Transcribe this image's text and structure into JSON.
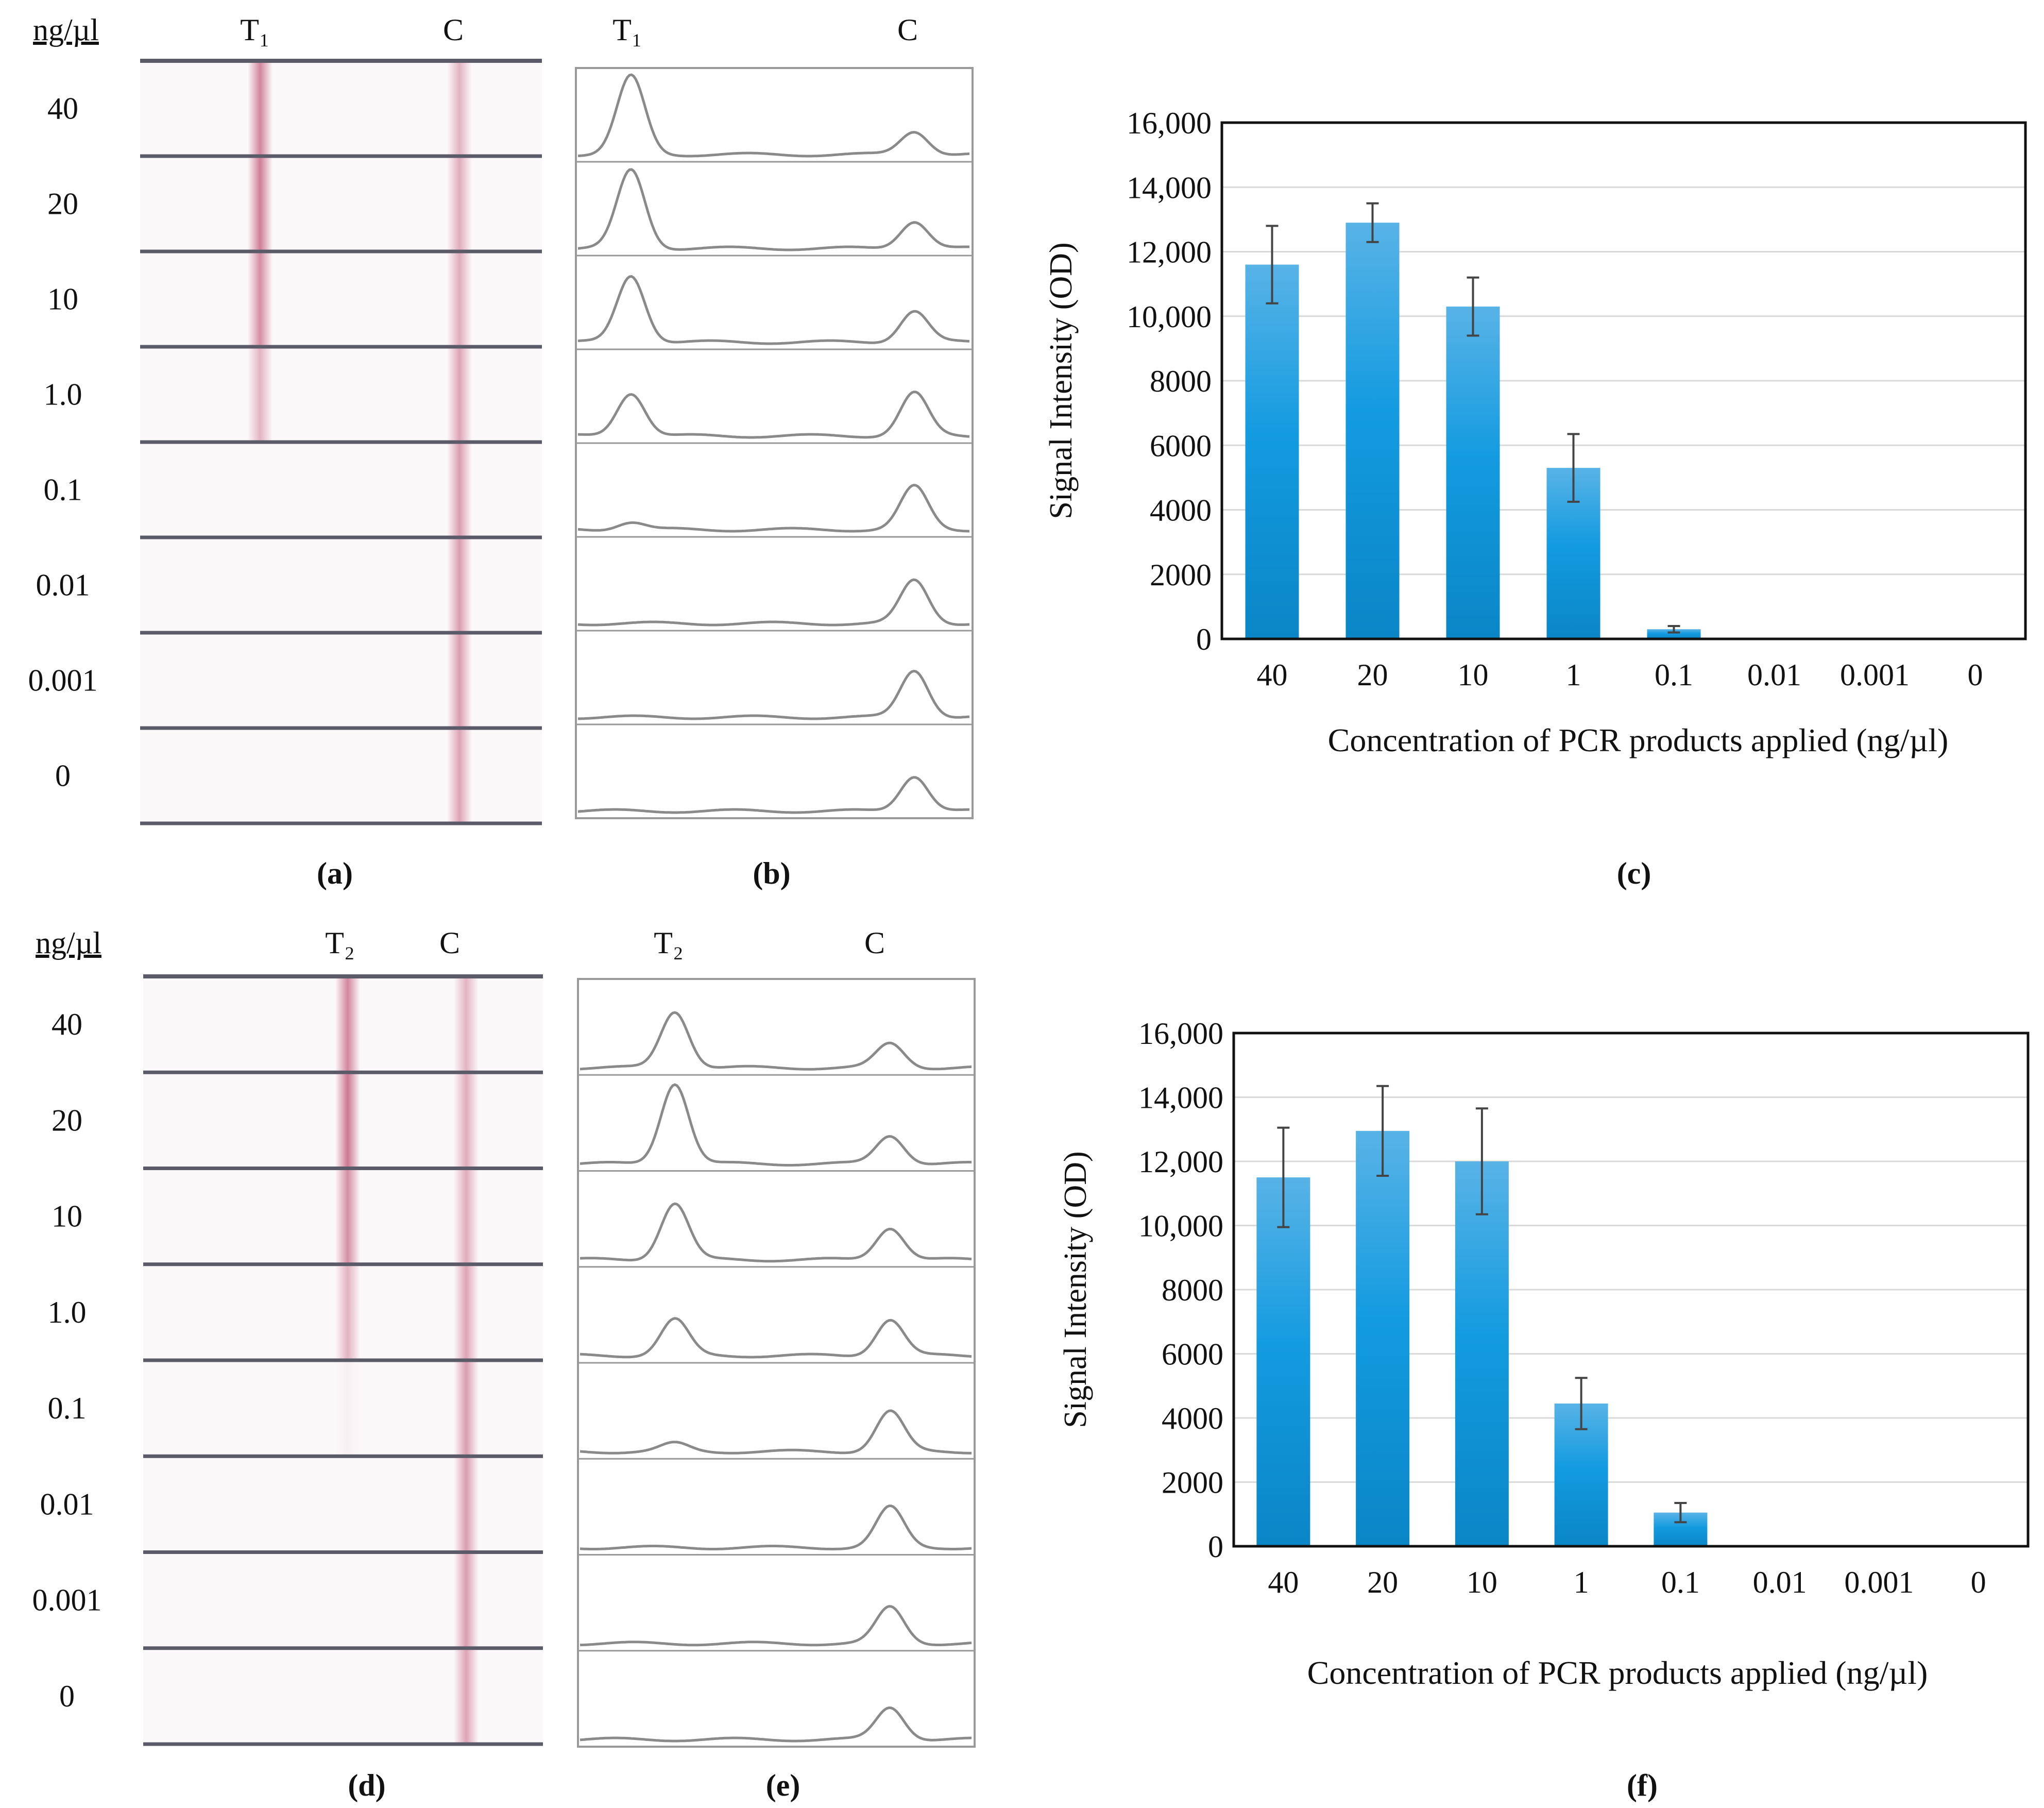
{
  "figure": {
    "top": {
      "strip": {
        "unit_header": "ng/µl",
        "test_header": "T₁",
        "control_header": "C",
        "rows": [
          "40",
          "20",
          "10",
          "1.0",
          "0.1",
          "0.01",
          "0.001",
          "0"
        ],
        "test_intensity": [
          0.75,
          0.8,
          0.7,
          0.45,
          0.0,
          0.0,
          0.0,
          0.0
        ],
        "control_intensity": [
          0.45,
          0.5,
          0.5,
          0.55,
          0.6,
          0.6,
          0.6,
          0.55
        ],
        "caption": "(a)"
      },
      "scan": {
        "test_header": "T₁",
        "control_header": "C",
        "test_peak": [
          1.0,
          1.0,
          0.85,
          0.55,
          0.1,
          0.0,
          0.0,
          0.0
        ],
        "control_peak": [
          0.3,
          0.35,
          0.4,
          0.55,
          0.55,
          0.55,
          0.6,
          0.45
        ],
        "caption": "(b)"
      },
      "chart_caption": "(c)"
    },
    "bottom": {
      "strip": {
        "unit_header": "ng/µl",
        "test_header": "T₂",
        "control_header": "C",
        "rows": [
          "40",
          "20",
          "10",
          "1.0",
          "0.1",
          "0.01",
          "0.001",
          "0"
        ],
        "test_intensity": [
          0.75,
          0.85,
          0.7,
          0.45,
          0.05,
          0.0,
          0.0,
          0.0
        ],
        "control_intensity": [
          0.45,
          0.5,
          0.5,
          0.55,
          0.6,
          0.6,
          0.6,
          0.55
        ],
        "caption": "(d)"
      },
      "scan": {
        "test_header": "T₂",
        "control_header": "C",
        "test_peak": [
          0.7,
          1.0,
          0.7,
          0.45,
          0.1,
          0.0,
          0.0,
          0.0
        ],
        "control_peak": [
          0.3,
          0.35,
          0.4,
          0.45,
          0.5,
          0.5,
          0.45,
          0.4
        ],
        "caption": "(e)"
      },
      "chart_caption": "(f)"
    }
  },
  "chart_data": [
    {
      "type": "bar",
      "title": "",
      "xlabel": "Concentration of PCR products applied (ng/µl)",
      "ylabel": "Signal Intensity (OD)",
      "categories": [
        "40",
        "20",
        "10",
        "1",
        "0.1",
        "0.01",
        "0.001",
        "0"
      ],
      "values": [
        11600,
        12900,
        10300,
        5300,
        300,
        0,
        0,
        0
      ],
      "errors": [
        1200,
        600,
        900,
        1050,
        100,
        0,
        0,
        0
      ],
      "ylim": [
        0,
        16000
      ],
      "yticks": [
        "0",
        "2000",
        "4000",
        "6000",
        "8000",
        "10,000",
        "12,000",
        "14,000",
        "16,000"
      ],
      "grid": true,
      "color": "#1a98d8"
    },
    {
      "type": "bar",
      "title": "",
      "xlabel": "Concentration of PCR products applied (ng/µl)",
      "ylabel": "Signal Intensity (OD)",
      "categories": [
        "40",
        "20",
        "10",
        "1",
        "0.1",
        "0.01",
        "0.001",
        "0"
      ],
      "values": [
        11500,
        12950,
        12000,
        4450,
        1050,
        0,
        0,
        0
      ],
      "errors": [
        1550,
        1400,
        1650,
        800,
        300,
        0,
        0,
        0
      ],
      "ylim": [
        0,
        16000
      ],
      "yticks": [
        "0",
        "2000",
        "4000",
        "6000",
        "8000",
        "10,000",
        "12,000",
        "14,000",
        "16,000"
      ],
      "grid": true,
      "color": "#1a98d8"
    }
  ]
}
